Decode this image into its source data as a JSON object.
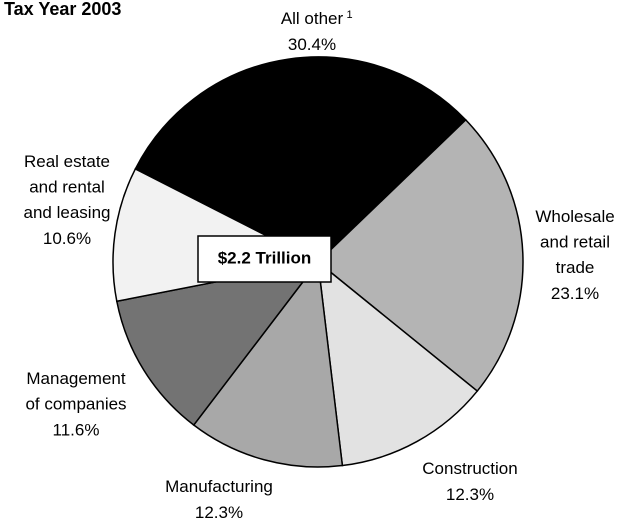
{
  "chart_data": {
    "type": "pie",
    "title": "Tax Year 2003",
    "categories": [
      "All other",
      "Wholesale and retail trade",
      "Construction",
      "Manufacturing",
      "Management of companies",
      "Real estate and rental and leasing"
    ],
    "label_superscripts": [
      "1",
      null,
      null,
      null,
      null,
      null
    ],
    "values": [
      30.4,
      23.1,
      12.3,
      12.3,
      11.6,
      10.6
    ],
    "value_labels": [
      "30.4%",
      "23.1%",
      "12.3%",
      "12.3%",
      "11.6%",
      "10.6%"
    ],
    "colors": [
      "#000000",
      "#b4b4b4",
      "#e2e2e2",
      "#a8a8a8",
      "#737373",
      "#f2f2f2"
    ],
    "center_label": "$2.2 Trillion"
  }
}
